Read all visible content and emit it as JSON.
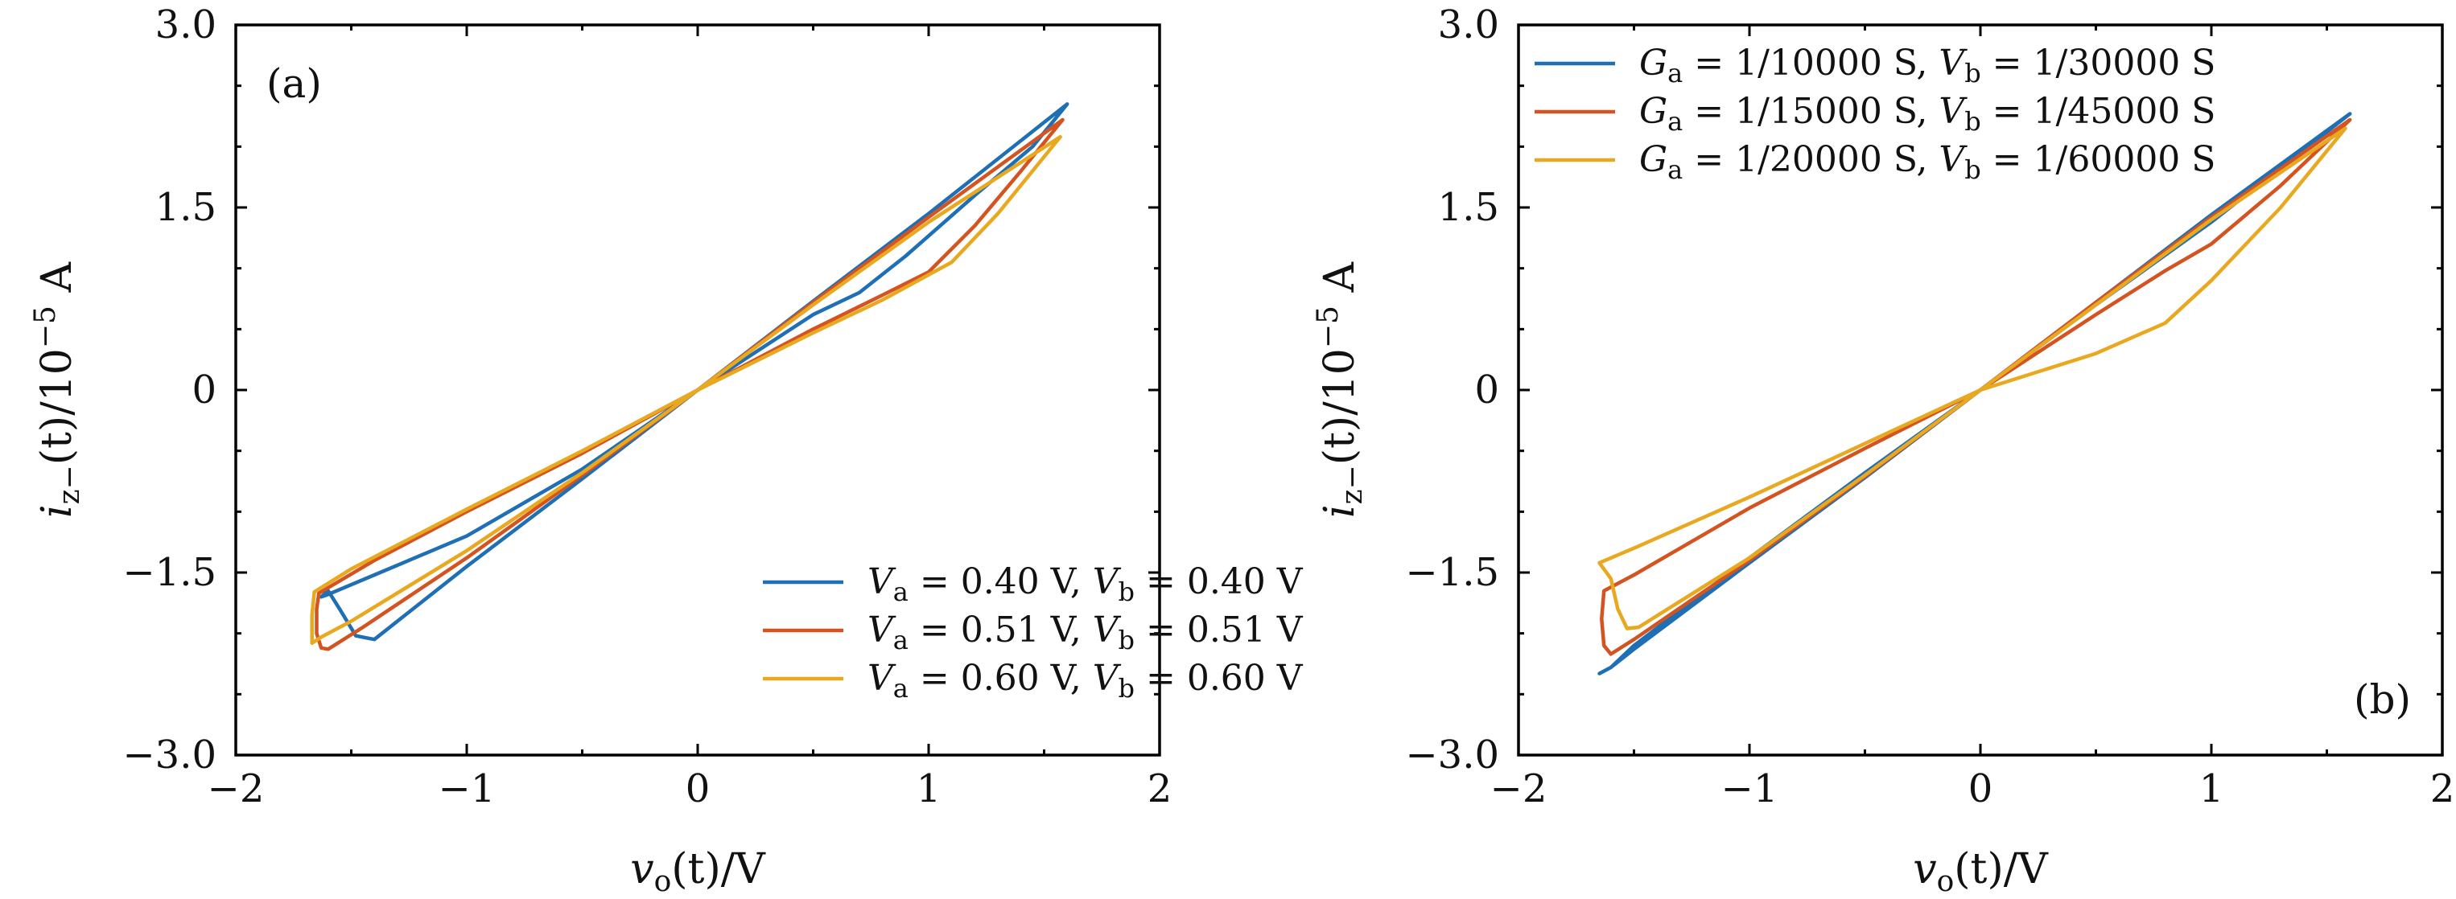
{
  "colors": {
    "blue": "#1f6fb4",
    "red": "#d35420",
    "yellow": "#e8a920"
  },
  "chart_data": [
    {
      "type": "line",
      "panel_label": "(a)",
      "xlabel": "v_o(t)/V",
      "ylabel": "i_z−(t)/10^−5 A",
      "xlim": [
        -2,
        2
      ],
      "ylim": [
        -3,
        3
      ],
      "xticks": [
        -2,
        -1,
        0,
        1,
        2
      ],
      "yticks": [
        -3.0,
        -1.5,
        0,
        1.5,
        3.0
      ],
      "xtick_labels": [
        "−2",
        "−1",
        "0",
        "1",
        "2"
      ],
      "ytick_labels": [
        "−3.0",
        "−1.5",
        "0",
        "1.5",
        "3.0"
      ],
      "grid": false,
      "legend_position": "bottom-right",
      "series": [
        {
          "name": "Va = 0.40 V, Vb = 0.40 V",
          "color": "#1f6fb4",
          "points": [
            [
              1.6,
              2.35
            ],
            [
              1.0,
              1.45
            ],
            [
              0.5,
              0.73
            ],
            [
              0,
              0
            ],
            [
              -0.5,
              -0.73
            ],
            [
              -1.0,
              -1.45
            ],
            [
              -1.4,
              -2.05
            ],
            [
              -1.48,
              -2.02
            ],
            [
              -1.55,
              -1.8
            ],
            [
              -1.6,
              -1.65
            ],
            [
              -1.63,
              -1.7
            ],
            [
              -1.6,
              -1.68
            ],
            [
              -1.4,
              -1.52
            ],
            [
              -1.0,
              -1.2
            ],
            [
              -0.5,
              -0.65
            ],
            [
              0,
              0
            ],
            [
              0.5,
              0.62
            ],
            [
              0.7,
              0.8
            ],
            [
              0.9,
              1.1
            ],
            [
              1.2,
              1.6
            ],
            [
              1.45,
              2.0
            ],
            [
              1.6,
              2.35
            ]
          ]
        },
        {
          "name": "Va = 0.51 V, Vb = 0.51 V",
          "color": "#d35420",
          "points": [
            [
              1.58,
              2.22
            ],
            [
              1.0,
              1.42
            ],
            [
              0.5,
              0.72
            ],
            [
              0,
              0
            ],
            [
              -0.5,
              -0.7
            ],
            [
              -1.0,
              -1.38
            ],
            [
              -1.45,
              -1.95
            ],
            [
              -1.6,
              -2.13
            ],
            [
              -1.63,
              -2.12
            ],
            [
              -1.65,
              -2.0
            ],
            [
              -1.65,
              -1.8
            ],
            [
              -1.64,
              -1.67
            ],
            [
              -1.4,
              -1.4
            ],
            [
              -1.0,
              -1.0
            ],
            [
              -0.5,
              -0.52
            ],
            [
              0,
              0
            ],
            [
              0.5,
              0.5
            ],
            [
              0.8,
              0.78
            ],
            [
              1.0,
              0.97
            ],
            [
              1.2,
              1.35
            ],
            [
              1.4,
              1.8
            ],
            [
              1.58,
              2.22
            ]
          ]
        },
        {
          "name": "Va = 0.60 V, Vb = 0.60 V",
          "color": "#e8a920",
          "points": [
            [
              1.57,
              2.08
            ],
            [
              1.0,
              1.38
            ],
            [
              0.5,
              0.7
            ],
            [
              0,
              0
            ],
            [
              -0.5,
              -0.68
            ],
            [
              -1.0,
              -1.32
            ],
            [
              -1.5,
              -1.9
            ],
            [
              -1.63,
              -2.03
            ],
            [
              -1.67,
              -2.08
            ],
            [
              -1.67,
              -1.85
            ],
            [
              -1.66,
              -1.66
            ],
            [
              -1.5,
              -1.47
            ],
            [
              -1.0,
              -0.98
            ],
            [
              -0.5,
              -0.5
            ],
            [
              0,
              0
            ],
            [
              0.5,
              0.47
            ],
            [
              0.8,
              0.74
            ],
            [
              1.1,
              1.05
            ],
            [
              1.3,
              1.45
            ],
            [
              1.57,
              2.08
            ]
          ]
        }
      ]
    },
    {
      "type": "line",
      "panel_label": "(b)",
      "xlabel": "v_o(t)/V",
      "ylabel": "i_z−(t)/10^−5 A",
      "xlim": [
        -2,
        2
      ],
      "ylim": [
        -3,
        3
      ],
      "xticks": [
        -2,
        -1,
        0,
        1,
        2
      ],
      "yticks": [
        -3.0,
        -1.5,
        0,
        1.5,
        3.0
      ],
      "xtick_labels": [
        "−2",
        "−1",
        "0",
        "1",
        "2"
      ],
      "ytick_labels": [
        "−3.0",
        "−1.5",
        "0",
        "1.5",
        "3.0"
      ],
      "grid": false,
      "legend_position": "top-left",
      "series": [
        {
          "name": "Ga = 1/10000 S, Vb = 1/30000 S",
          "color": "#1f6fb4",
          "points": [
            [
              1.6,
              2.27
            ],
            [
              1.0,
              1.44
            ],
            [
              0.5,
              0.72
            ],
            [
              0,
              0
            ],
            [
              -0.5,
              -0.72
            ],
            [
              -1.0,
              -1.42
            ],
            [
              -1.5,
              -2.13
            ],
            [
              -1.6,
              -2.28
            ],
            [
              -1.65,
              -2.33
            ],
            [
              -1.6,
              -2.28
            ],
            [
              -1.5,
              -2.1
            ],
            [
              -1.0,
              -1.38
            ],
            [
              -0.5,
              -0.68
            ],
            [
              0,
              0
            ],
            [
              0.5,
              0.7
            ],
            [
              1.0,
              1.38
            ],
            [
              1.6,
              2.27
            ]
          ]
        },
        {
          "name": "Ga = 1/15000 S, Vb = 1/45000 S",
          "color": "#d35420",
          "points": [
            [
              1.6,
              2.22
            ],
            [
              1.0,
              1.42
            ],
            [
              0.5,
              0.72
            ],
            [
              0,
              0
            ],
            [
              -0.5,
              -0.71
            ],
            [
              -1.0,
              -1.4
            ],
            [
              -1.5,
              -2.05
            ],
            [
              -1.6,
              -2.17
            ],
            [
              -1.63,
              -2.1
            ],
            [
              -1.64,
              -1.88
            ],
            [
              -1.63,
              -1.65
            ],
            [
              -1.5,
              -1.52
            ],
            [
              -1.0,
              -0.97
            ],
            [
              -0.5,
              -0.48
            ],
            [
              0,
              0
            ],
            [
              0.5,
              0.62
            ],
            [
              0.8,
              0.98
            ],
            [
              1.0,
              1.2
            ],
            [
              1.3,
              1.68
            ],
            [
              1.6,
              2.22
            ]
          ]
        },
        {
          "name": "Ga = 1/20000 S, Vb = 1/60000 S",
          "color": "#e8a920",
          "points": [
            [
              1.58,
              2.15
            ],
            [
              1.0,
              1.4
            ],
            [
              0.5,
              0.7
            ],
            [
              0,
              0
            ],
            [
              -0.5,
              -0.7
            ],
            [
              -1.0,
              -1.38
            ],
            [
              -1.48,
              -1.95
            ],
            [
              -1.53,
              -1.96
            ],
            [
              -1.57,
              -1.8
            ],
            [
              -1.6,
              -1.55
            ],
            [
              -1.65,
              -1.42
            ],
            [
              -1.5,
              -1.3
            ],
            [
              -1.0,
              -0.88
            ],
            [
              -0.5,
              -0.44
            ],
            [
              0,
              0
            ],
            [
              0.5,
              0.3
            ],
            [
              0.8,
              0.55
            ],
            [
              1.0,
              0.9
            ],
            [
              1.3,
              1.5
            ],
            [
              1.58,
              2.15
            ]
          ]
        }
      ]
    }
  ]
}
